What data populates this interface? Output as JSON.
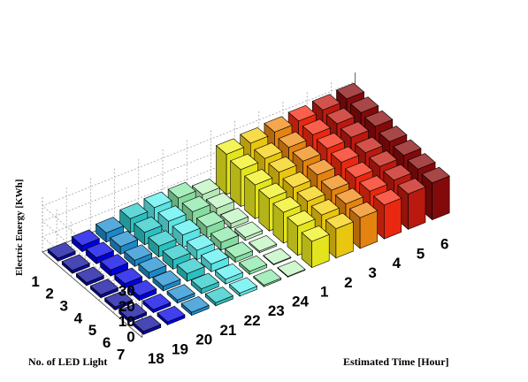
{
  "chart_data": {
    "type": "bar",
    "title": "",
    "zlabel": "Electric Energy [KWh]",
    "xlabel": "Estimated Time [Hour]",
    "ylabel": "No. of LED Light",
    "zlim": [
      0,
      30
    ],
    "z_ticks": [
      "0",
      "10",
      "20",
      "30"
    ],
    "x_categories": [
      "18",
      "19",
      "20",
      "21",
      "22",
      "23",
      "24",
      "1",
      "2",
      "3",
      "4",
      "5",
      "6"
    ],
    "y_categories": [
      "1",
      "2",
      "3",
      "4",
      "5",
      "6",
      "7"
    ],
    "grid": true,
    "colormap": "hot-jet (blue to dark red by time)",
    "colors": [
      "#0a0a9e",
      "#0000e6",
      "#1e8fd0",
      "#2ec9c9",
      "#5ff0f0",
      "#8ce8a8",
      "#c0f5c0",
      "#f0f020",
      "#f5d010",
      "#f08a10",
      "#f52a10",
      "#c41a10",
      "#8a0a0a"
    ],
    "values": [
      [
        2,
        2,
        2,
        2,
        2,
        2,
        2
      ],
      [
        4,
        4,
        4,
        3,
        3,
        2,
        2
      ],
      [
        6,
        5,
        4,
        4,
        3,
        2,
        2
      ],
      [
        9,
        8,
        7,
        6,
        5,
        3,
        2
      ],
      [
        10,
        9,
        8,
        6,
        5,
        3,
        2
      ],
      [
        10,
        9,
        7,
        5,
        3,
        2,
        1
      ],
      [
        6,
        5,
        3,
        2,
        1,
        0.5,
        0.5
      ],
      [
        26,
        24,
        22,
        21,
        20,
        19,
        17
      ],
      [
        27,
        25,
        24,
        22,
        21,
        20,
        19
      ],
      [
        28,
        26,
        25,
        24,
        22,
        21,
        20
      ],
      [
        29,
        28,
        27,
        26,
        24,
        23,
        22
      ],
      [
        30,
        29,
        28,
        26,
        25,
        24,
        23
      ],
      [
        31,
        30,
        29,
        27,
        26,
        25,
        24
      ]
    ]
  }
}
